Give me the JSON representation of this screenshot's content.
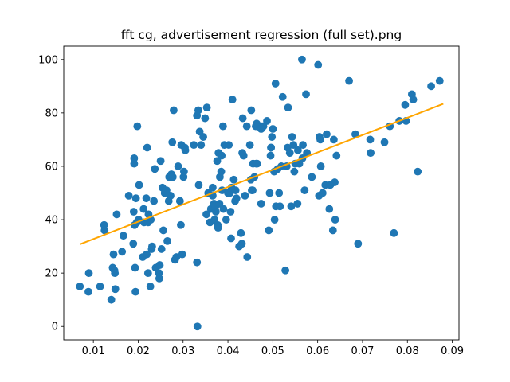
{
  "chart_data": {
    "type": "scatter",
    "title": "fft cg, advertisement regression (full set).png",
    "xlabel": "",
    "ylabel": "",
    "xlim": [
      0.0034,
      0.0915
    ],
    "ylim": [
      -5,
      105
    ],
    "xticks": [
      "0.01",
      "0.02",
      "0.03",
      "0.04",
      "0.05",
      "0.06",
      "0.07",
      "0.08",
      "0.09"
    ],
    "yticks": [
      "0",
      "20",
      "40",
      "60",
      "80",
      "100"
    ],
    "grid": false,
    "colors": {
      "points": "#1f77b4",
      "fit_line": "#ffa500",
      "axes": "#000000"
    },
    "series": [
      {
        "name": "data",
        "kind": "scatter",
        "points": [
          [
            0.007,
            15
          ],
          [
            0.0089,
            13
          ],
          [
            0.009,
            20
          ],
          [
            0.0115,
            15
          ],
          [
            0.0124,
            38
          ],
          [
            0.0125,
            36
          ],
          [
            0.014,
            10
          ],
          [
            0.0143,
            22
          ],
          [
            0.0145,
            27
          ],
          [
            0.0147,
            21
          ],
          [
            0.0148,
            20
          ],
          [
            0.0149,
            14
          ],
          [
            0.0152,
            42
          ],
          [
            0.0164,
            28
          ],
          [
            0.0167,
            34
          ],
          [
            0.0179,
            49
          ],
          [
            0.0189,
            31
          ],
          [
            0.019,
            43
          ],
          [
            0.0191,
            63
          ],
          [
            0.0191,
            61
          ],
          [
            0.0192,
            38
          ],
          [
            0.0193,
            22
          ],
          [
            0.0194,
            13
          ],
          [
            0.0195,
            48
          ],
          [
            0.0197,
            39
          ],
          [
            0.0198,
            75
          ],
          [
            0.0201,
            40
          ],
          [
            0.0202,
            53
          ],
          [
            0.021,
            26
          ],
          [
            0.0212,
            44
          ],
          [
            0.0213,
            39
          ],
          [
            0.0218,
            48
          ],
          [
            0.0219,
            27
          ],
          [
            0.022,
            67
          ],
          [
            0.0222,
            20
          ],
          [
            0.0222,
            39
          ],
          [
            0.0223,
            42
          ],
          [
            0.0227,
            15
          ],
          [
            0.0228,
            40
          ],
          [
            0.023,
            29
          ],
          [
            0.0231,
            30
          ],
          [
            0.0235,
            47
          ],
          [
            0.0237,
            59
          ],
          [
            0.0239,
            22
          ],
          [
            0.0246,
            20
          ],
          [
            0.0247,
            18
          ],
          [
            0.0248,
            23
          ],
          [
            0.025,
            62
          ],
          [
            0.0252,
            29
          ],
          [
            0.0254,
            52
          ],
          [
            0.0256,
            36
          ],
          [
            0.0259,
            50
          ],
          [
            0.0263,
            51
          ],
          [
            0.0265,
            32
          ],
          [
            0.0268,
            47
          ],
          [
            0.0269,
            56
          ],
          [
            0.0272,
            49
          ],
          [
            0.0274,
            57
          ],
          [
            0.0276,
            69
          ],
          [
            0.0277,
            56
          ],
          [
            0.0279,
            81
          ],
          [
            0.0282,
            25
          ],
          [
            0.0285,
            26
          ],
          [
            0.0289,
            60
          ],
          [
            0.0293,
            47
          ],
          [
            0.0295,
            38
          ],
          [
            0.0296,
            68
          ],
          [
            0.0298,
            27
          ],
          [
            0.0301,
            56
          ],
          [
            0.0302,
            58
          ],
          [
            0.0304,
            67
          ],
          [
            0.0305,
            66
          ],
          [
            0.0324,
            68
          ],
          [
            0.0331,
            79
          ],
          [
            0.0331,
            24
          ],
          [
            0.0332,
            0
          ],
          [
            0.0334,
            81
          ],
          [
            0.0335,
            53
          ],
          [
            0.0337,
            73
          ],
          [
            0.034,
            68
          ],
          [
            0.0345,
            71
          ],
          [
            0.0349,
            78
          ],
          [
            0.0352,
            42
          ],
          [
            0.0353,
            82
          ],
          [
            0.0356,
            50
          ],
          [
            0.036,
            39
          ],
          [
            0.0362,
            44
          ],
          [
            0.0366,
            52
          ],
          [
            0.0366,
            49
          ],
          [
            0.0369,
            46
          ],
          [
            0.037,
            40
          ],
          [
            0.0372,
            45
          ],
          [
            0.0373,
            43
          ],
          [
            0.0376,
            62
          ],
          [
            0.0377,
            38
          ],
          [
            0.0378,
            37
          ],
          [
            0.0379,
            65
          ],
          [
            0.0381,
            46
          ],
          [
            0.0382,
            56
          ],
          [
            0.0385,
            58
          ],
          [
            0.0386,
            64
          ],
          [
            0.0387,
            51
          ],
          [
            0.0389,
            75
          ],
          [
            0.039,
            44
          ],
          [
            0.0392,
            68
          ],
          [
            0.0396,
            40
          ],
          [
            0.04,
            50
          ],
          [
            0.0402,
            68
          ],
          [
            0.0404,
            50
          ],
          [
            0.0406,
            43
          ],
          [
            0.0407,
            33
          ],
          [
            0.0408,
            52
          ],
          [
            0.041,
            85
          ],
          [
            0.0413,
            55
          ],
          [
            0.0416,
            47
          ],
          [
            0.0417,
            51
          ],
          [
            0.0419,
            48
          ],
          [
            0.0425,
            30
          ],
          [
            0.0429,
            35
          ],
          [
            0.0431,
            31
          ],
          [
            0.0432,
            65
          ],
          [
            0.0433,
            78
          ],
          [
            0.0435,
            64
          ],
          [
            0.0438,
            49
          ],
          [
            0.0442,
            75
          ],
          [
            0.0443,
            26
          ],
          [
            0.0449,
            68
          ],
          [
            0.0451,
            55
          ],
          [
            0.0452,
            81
          ],
          [
            0.0453,
            51
          ],
          [
            0.0455,
            51
          ],
          [
            0.0456,
            61
          ],
          [
            0.0459,
            56
          ],
          [
            0.0462,
            75
          ],
          [
            0.0463,
            61
          ],
          [
            0.0464,
            76
          ],
          [
            0.0465,
            61
          ],
          [
            0.0474,
            74
          ],
          [
            0.0474,
            46
          ],
          [
            0.0476,
            75
          ],
          [
            0.0479,
            75
          ],
          [
            0.0487,
            77
          ],
          [
            0.0491,
            36
          ],
          [
            0.0493,
            50
          ],
          [
            0.0495,
            64
          ],
          [
            0.0496,
            67
          ],
          [
            0.0496,
            67
          ],
          [
            0.0498,
            71
          ],
          [
            0.05,
            74
          ],
          [
            0.0503,
            58
          ],
          [
            0.0504,
            40
          ],
          [
            0.0506,
            91
          ],
          [
            0.0507,
            45
          ],
          [
            0.0511,
            59
          ],
          [
            0.0514,
            50
          ],
          [
            0.0516,
            45
          ],
          [
            0.0519,
            60
          ],
          [
            0.0522,
            86
          ],
          [
            0.0528,
            21
          ],
          [
            0.0531,
            60
          ],
          [
            0.0533,
            67
          ],
          [
            0.0534,
            82
          ],
          [
            0.0538,
            65
          ],
          [
            0.0541,
            45
          ],
          [
            0.0543,
            71
          ],
          [
            0.0546,
            68
          ],
          [
            0.0548,
            58
          ],
          [
            0.055,
            61
          ],
          [
            0.0555,
            46
          ],
          [
            0.0556,
            66
          ],
          [
            0.0559,
            61
          ],
          [
            0.0565,
            100
          ],
          [
            0.0566,
            63
          ],
          [
            0.0567,
            68
          ],
          [
            0.0571,
            51
          ],
          [
            0.0574,
            87
          ],
          [
            0.0576,
            65
          ],
          [
            0.0587,
            56
          ],
          [
            0.0601,
            98
          ],
          [
            0.0603,
            49
          ],
          [
            0.0604,
            71
          ],
          [
            0.0606,
            70
          ],
          [
            0.0607,
            60
          ],
          [
            0.0611,
            50
          ],
          [
            0.0617,
            53
          ],
          [
            0.062,
            72
          ],
          [
            0.0626,
            44
          ],
          [
            0.0628,
            53
          ],
          [
            0.0634,
            36
          ],
          [
            0.0636,
            70
          ],
          [
            0.0638,
            54
          ],
          [
            0.0639,
            40
          ],
          [
            0.0642,
            64
          ],
          [
            0.067,
            92
          ],
          [
            0.0684,
            72
          ],
          [
            0.069,
            31
          ],
          [
            0.0717,
            70
          ],
          [
            0.0718,
            65
          ],
          [
            0.0749,
            69
          ],
          [
            0.0761,
            75
          ],
          [
            0.077,
            35
          ],
          [
            0.0782,
            77
          ],
          [
            0.0795,
            83
          ],
          [
            0.0797,
            77
          ],
          [
            0.081,
            87
          ],
          [
            0.0813,
            85
          ],
          [
            0.0823,
            58
          ],
          [
            0.0853,
            90
          ],
          [
            0.0872,
            92
          ]
        ]
      },
      {
        "name": "fit",
        "kind": "line",
        "points": [
          [
            0.007,
            30.8
          ],
          [
            0.088,
            83.4
          ]
        ]
      }
    ]
  }
}
